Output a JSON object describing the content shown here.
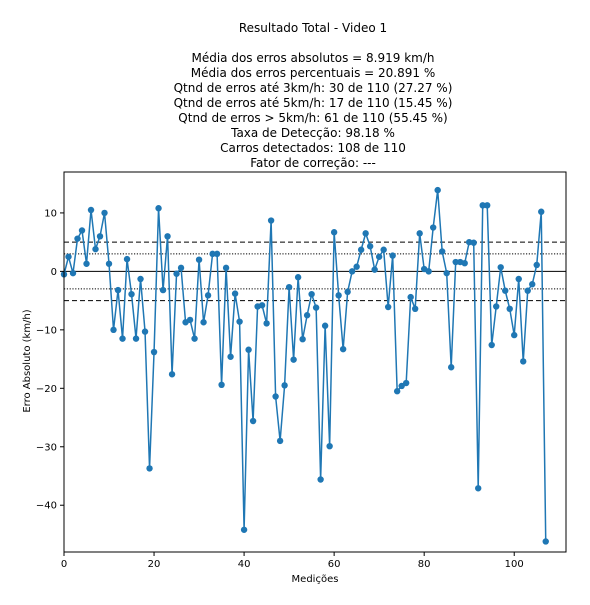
{
  "chart_data": {
    "type": "line",
    "title": "Resultado Total - Video 1",
    "subtitle_lines": [
      "Média dos erros absolutos =  8.919 km/h",
      "Média dos erros percentuais = 20.891 %",
      "Qtnd de erros até 3km/h: 30 de 110 (27.27 %)",
      "Qtnd de erros até 5km/h: 17 de 110 (15.45 %)",
      "Qtnd de erros > 5km/h: 61 de 110 (55.45 %)",
      "Taxa de Detecção: 98.18 %",
      "Carros detectados: 108 de 110",
      "Fator de correção: ---"
    ],
    "xlabel": "Medições",
    "ylabel": "Erro Absoluto (km/h)",
    "xlim": [
      0,
      111.5
    ],
    "ylim": [
      -48,
      17
    ],
    "xticks": [
      0,
      20,
      40,
      60,
      80,
      100
    ],
    "yticks": [
      10,
      0,
      -10,
      -20,
      -30,
      -40
    ],
    "grid": false,
    "series_color": "#1f77b4",
    "reference_lines": [
      {
        "y": 0,
        "style": "solid"
      },
      {
        "y": 3,
        "style": "dotted"
      },
      {
        "y": -3,
        "style": "dotted"
      },
      {
        "y": 5,
        "style": "dashed"
      },
      {
        "y": -5,
        "style": "dashed"
      }
    ],
    "series": [
      {
        "x": [
          0,
          1,
          2,
          3,
          4,
          5,
          6,
          7,
          8,
          9,
          10,
          11,
          12,
          13,
          14,
          15,
          16,
          17,
          18,
          19,
          20,
          21,
          22,
          23,
          24,
          25,
          26,
          27,
          28,
          29,
          30,
          31,
          32,
          33,
          34,
          35,
          36,
          37,
          38,
          39,
          40,
          41,
          42,
          43,
          44,
          45,
          46,
          47,
          48,
          49,
          50,
          51,
          52,
          53,
          54,
          55,
          56,
          57,
          58,
          59,
          60,
          61,
          62,
          63,
          64,
          65,
          66,
          67,
          68,
          69,
          70,
          71,
          72,
          73,
          74,
          75,
          76,
          77,
          78,
          79,
          80,
          81,
          82,
          83,
          84,
          85,
          86,
          87,
          88,
          89,
          90,
          91,
          92,
          93,
          94,
          95,
          96,
          97,
          98,
          99,
          100,
          101,
          102,
          103,
          104,
          105,
          106,
          107
        ],
        "values": [
          -0.5,
          2.5,
          -0.3,
          5.6,
          7.0,
          1.3,
          10.5,
          3.8,
          6.0,
          10.0,
          1.3,
          -10.0,
          -3.2,
          -11.5,
          2.1,
          -3.9,
          -11.5,
          -1.3,
          -10.3,
          -33.7,
          -13.8,
          10.8,
          -3.2,
          6.0,
          -17.6,
          -0.4,
          0.6,
          -8.7,
          -8.3,
          -11.5,
          2.0,
          -8.7,
          -4.1,
          3.0,
          3.0,
          -19.4,
          0.6,
          -14.6,
          -3.8,
          -8.6,
          -44.2,
          -13.4,
          -25.6,
          -6.0,
          -5.8,
          -8.9,
          8.7,
          -21.4,
          -29.0,
          -19.5,
          -2.7,
          -15.1,
          -1.0,
          -11.6,
          -7.5,
          -3.9,
          -6.2,
          -35.6,
          -9.3,
          -29.9,
          6.7,
          -4.1,
          -13.3,
          -3.5,
          0.0,
          0.8,
          3.7,
          6.5,
          4.3,
          0.3,
          2.5,
          3.7,
          -6.1,
          2.7,
          -20.5,
          -19.6,
          -19.1,
          -4.4,
          -6.4,
          6.5,
          0.4,
          0.0,
          7.5,
          13.9,
          3.4,
          -0.3,
          -16.4,
          1.6,
          1.6,
          1.4,
          5.0,
          4.9,
          -37.1,
          11.3,
          11.3,
          -12.6,
          -6.0,
          0.7,
          -3.3,
          -6.4,
          -10.9,
          -1.3,
          -15.4,
          -3.3,
          -2.2,
          1.1,
          10.2,
          -46.2
        ]
      }
    ]
  }
}
